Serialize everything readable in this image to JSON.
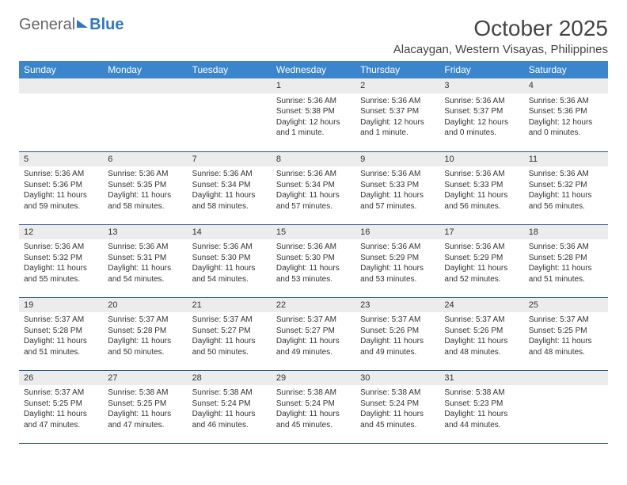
{
  "logo": {
    "part1": "General",
    "part2": "Blue"
  },
  "title": "October 2025",
  "location": "Alacaygan, Western Visayas, Philippines",
  "day_headers": [
    "Sunday",
    "Monday",
    "Tuesday",
    "Wednesday",
    "Thursday",
    "Friday",
    "Saturday"
  ],
  "colors": {
    "header_bg": "#3b85cc",
    "header_text": "#ffffff",
    "daynum_bg": "#ececec",
    "row_border": "#2a5a8a",
    "logo_blue": "#2f79c4"
  },
  "weeks": [
    [
      null,
      null,
      null,
      {
        "num": "1",
        "sunrise": "Sunrise: 5:36 AM",
        "sunset": "Sunset: 5:38 PM",
        "daylight": "Daylight: 12 hours and 1 minute."
      },
      {
        "num": "2",
        "sunrise": "Sunrise: 5:36 AM",
        "sunset": "Sunset: 5:37 PM",
        "daylight": "Daylight: 12 hours and 1 minute."
      },
      {
        "num": "3",
        "sunrise": "Sunrise: 5:36 AM",
        "sunset": "Sunset: 5:37 PM",
        "daylight": "Daylight: 12 hours and 0 minutes."
      },
      {
        "num": "4",
        "sunrise": "Sunrise: 5:36 AM",
        "sunset": "Sunset: 5:36 PM",
        "daylight": "Daylight: 12 hours and 0 minutes."
      }
    ],
    [
      {
        "num": "5",
        "sunrise": "Sunrise: 5:36 AM",
        "sunset": "Sunset: 5:36 PM",
        "daylight": "Daylight: 11 hours and 59 minutes."
      },
      {
        "num": "6",
        "sunrise": "Sunrise: 5:36 AM",
        "sunset": "Sunset: 5:35 PM",
        "daylight": "Daylight: 11 hours and 58 minutes."
      },
      {
        "num": "7",
        "sunrise": "Sunrise: 5:36 AM",
        "sunset": "Sunset: 5:34 PM",
        "daylight": "Daylight: 11 hours and 58 minutes."
      },
      {
        "num": "8",
        "sunrise": "Sunrise: 5:36 AM",
        "sunset": "Sunset: 5:34 PM",
        "daylight": "Daylight: 11 hours and 57 minutes."
      },
      {
        "num": "9",
        "sunrise": "Sunrise: 5:36 AM",
        "sunset": "Sunset: 5:33 PM",
        "daylight": "Daylight: 11 hours and 57 minutes."
      },
      {
        "num": "10",
        "sunrise": "Sunrise: 5:36 AM",
        "sunset": "Sunset: 5:33 PM",
        "daylight": "Daylight: 11 hours and 56 minutes."
      },
      {
        "num": "11",
        "sunrise": "Sunrise: 5:36 AM",
        "sunset": "Sunset: 5:32 PM",
        "daylight": "Daylight: 11 hours and 56 minutes."
      }
    ],
    [
      {
        "num": "12",
        "sunrise": "Sunrise: 5:36 AM",
        "sunset": "Sunset: 5:32 PM",
        "daylight": "Daylight: 11 hours and 55 minutes."
      },
      {
        "num": "13",
        "sunrise": "Sunrise: 5:36 AM",
        "sunset": "Sunset: 5:31 PM",
        "daylight": "Daylight: 11 hours and 54 minutes."
      },
      {
        "num": "14",
        "sunrise": "Sunrise: 5:36 AM",
        "sunset": "Sunset: 5:30 PM",
        "daylight": "Daylight: 11 hours and 54 minutes."
      },
      {
        "num": "15",
        "sunrise": "Sunrise: 5:36 AM",
        "sunset": "Sunset: 5:30 PM",
        "daylight": "Daylight: 11 hours and 53 minutes."
      },
      {
        "num": "16",
        "sunrise": "Sunrise: 5:36 AM",
        "sunset": "Sunset: 5:29 PM",
        "daylight": "Daylight: 11 hours and 53 minutes."
      },
      {
        "num": "17",
        "sunrise": "Sunrise: 5:36 AM",
        "sunset": "Sunset: 5:29 PM",
        "daylight": "Daylight: 11 hours and 52 minutes."
      },
      {
        "num": "18",
        "sunrise": "Sunrise: 5:36 AM",
        "sunset": "Sunset: 5:28 PM",
        "daylight": "Daylight: 11 hours and 51 minutes."
      }
    ],
    [
      {
        "num": "19",
        "sunrise": "Sunrise: 5:37 AM",
        "sunset": "Sunset: 5:28 PM",
        "daylight": "Daylight: 11 hours and 51 minutes."
      },
      {
        "num": "20",
        "sunrise": "Sunrise: 5:37 AM",
        "sunset": "Sunset: 5:28 PM",
        "daylight": "Daylight: 11 hours and 50 minutes."
      },
      {
        "num": "21",
        "sunrise": "Sunrise: 5:37 AM",
        "sunset": "Sunset: 5:27 PM",
        "daylight": "Daylight: 11 hours and 50 minutes."
      },
      {
        "num": "22",
        "sunrise": "Sunrise: 5:37 AM",
        "sunset": "Sunset: 5:27 PM",
        "daylight": "Daylight: 11 hours and 49 minutes."
      },
      {
        "num": "23",
        "sunrise": "Sunrise: 5:37 AM",
        "sunset": "Sunset: 5:26 PM",
        "daylight": "Daylight: 11 hours and 49 minutes."
      },
      {
        "num": "24",
        "sunrise": "Sunrise: 5:37 AM",
        "sunset": "Sunset: 5:26 PM",
        "daylight": "Daylight: 11 hours and 48 minutes."
      },
      {
        "num": "25",
        "sunrise": "Sunrise: 5:37 AM",
        "sunset": "Sunset: 5:25 PM",
        "daylight": "Daylight: 11 hours and 48 minutes."
      }
    ],
    [
      {
        "num": "26",
        "sunrise": "Sunrise: 5:37 AM",
        "sunset": "Sunset: 5:25 PM",
        "daylight": "Daylight: 11 hours and 47 minutes."
      },
      {
        "num": "27",
        "sunrise": "Sunrise: 5:38 AM",
        "sunset": "Sunset: 5:25 PM",
        "daylight": "Daylight: 11 hours and 47 minutes."
      },
      {
        "num": "28",
        "sunrise": "Sunrise: 5:38 AM",
        "sunset": "Sunset: 5:24 PM",
        "daylight": "Daylight: 11 hours and 46 minutes."
      },
      {
        "num": "29",
        "sunrise": "Sunrise: 5:38 AM",
        "sunset": "Sunset: 5:24 PM",
        "daylight": "Daylight: 11 hours and 45 minutes."
      },
      {
        "num": "30",
        "sunrise": "Sunrise: 5:38 AM",
        "sunset": "Sunset: 5:24 PM",
        "daylight": "Daylight: 11 hours and 45 minutes."
      },
      {
        "num": "31",
        "sunrise": "Sunrise: 5:38 AM",
        "sunset": "Sunset: 5:23 PM",
        "daylight": "Daylight: 11 hours and 44 minutes."
      },
      null
    ]
  ]
}
